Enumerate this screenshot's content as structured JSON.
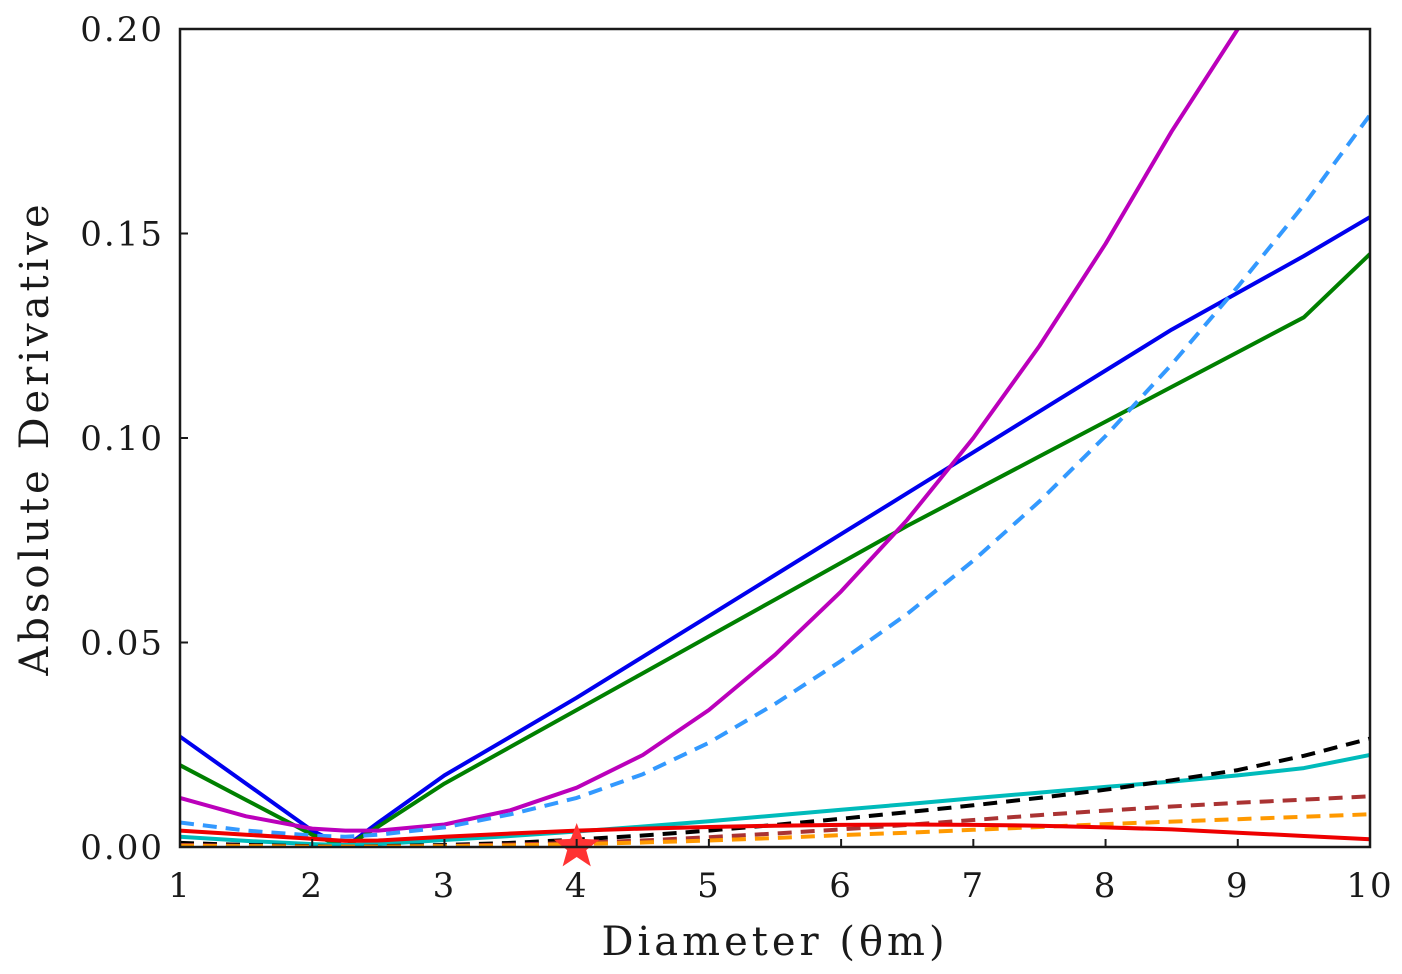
{
  "chart_data": {
    "type": "line",
    "title": "",
    "xlabel": "Diameter (θm)",
    "ylabel": "Absolute Derivative",
    "xlim": [
      1,
      10
    ],
    "ylim": [
      0,
      0.2
    ],
    "grid": false,
    "legend": "none",
    "x_ticks": [
      "1",
      "2",
      "3",
      "4",
      "5",
      "6",
      "7",
      "8",
      "9",
      "10"
    ],
    "y_ticks": [
      "0.00",
      "0.05",
      "0.10",
      "0.15",
      "0.20"
    ],
    "x": [
      1,
      1.5,
      2,
      2.25,
      2.5,
      3,
      3.5,
      4,
      4.5,
      5,
      5.5,
      6,
      6.5,
      7,
      7.5,
      8,
      8.5,
      9,
      9.5,
      10
    ],
    "series": [
      {
        "color": "#0000ee",
        "dash": "solid",
        "values": [
          0.027,
          0.0155,
          0.004,
          0.0,
          0.006,
          0.0175,
          0.027,
          0.0365,
          0.0465,
          0.0565,
          0.0665,
          0.0765,
          0.0865,
          0.0965,
          0.1065,
          0.1165,
          0.1265,
          0.1355,
          0.1445,
          0.154
        ]
      },
      {
        "color": "#008000",
        "dash": "solid",
        "values": [
          0.02,
          0.0115,
          0.003,
          0.0,
          0.005,
          0.0155,
          0.0245,
          0.0335,
          0.0425,
          0.0515,
          0.0605,
          0.0695,
          0.0785,
          0.087,
          0.0955,
          0.104,
          0.1125,
          0.121,
          0.1295,
          0.145
        ]
      },
      {
        "color": "#bb00bb",
        "dash": "solid",
        "values": [
          0.012,
          0.0075,
          0.0045,
          0.004,
          0.004,
          0.0055,
          0.009,
          0.0145,
          0.0225,
          0.0335,
          0.047,
          0.0625,
          0.08,
          0.1,
          0.1225,
          0.1475,
          0.175,
          0.2,
          null,
          null
        ]
      },
      {
        "color": "#3399ff",
        "dash": "dashed",
        "values": [
          0.006,
          0.004,
          0.0028,
          0.0025,
          0.003,
          0.0048,
          0.008,
          0.012,
          0.0178,
          0.0255,
          0.035,
          0.0455,
          0.057,
          0.07,
          0.0845,
          0.1005,
          0.118,
          0.137,
          0.157,
          0.179
        ]
      },
      {
        "color": "#00bbbb",
        "dash": "solid",
        "values": [
          0.0025,
          0.0015,
          0.0007,
          0.0005,
          0.0007,
          0.0017,
          0.0027,
          0.0038,
          0.005,
          0.0063,
          0.0077,
          0.0091,
          0.0105,
          0.0119,
          0.0133,
          0.0147,
          0.016,
          0.0175,
          0.0193,
          0.0225
        ]
      },
      {
        "color": "#000000",
        "dash": "dashed",
        "values": [
          0.001,
          0.0005,
          0.0002,
          0.0001,
          0.0002,
          0.0005,
          0.001,
          0.0018,
          0.0028,
          0.004,
          0.0054,
          0.0069,
          0.0085,
          0.0102,
          0.012,
          0.014,
          0.0163,
          0.0188,
          0.0223,
          0.0265
        ]
      },
      {
        "color": "#aa3333",
        "dash": "dashed",
        "values": [
          0.0005,
          0.0003,
          0.0001,
          0.0001,
          0.0001,
          0.0003,
          0.0006,
          0.001,
          0.0016,
          0.0024,
          0.0033,
          0.0043,
          0.0054,
          0.0066,
          0.0078,
          0.0089,
          0.0099,
          0.0108,
          0.0116,
          0.0124
        ]
      },
      {
        "color": "#ff9900",
        "dash": "dashed",
        "values": [
          0.0003,
          0.0002,
          0.0001,
          0.0001,
          0.0001,
          0.0002,
          0.0004,
          0.0007,
          0.0011,
          0.0016,
          0.0022,
          0.0029,
          0.0035,
          0.0042,
          0.0049,
          0.0056,
          0.0062,
          0.0068,
          0.0074,
          0.008
        ]
      },
      {
        "color": "#ee0000",
        "dash": "solid",
        "values": [
          0.004,
          0.003,
          0.002,
          0.0015,
          0.0016,
          0.0025,
          0.0033,
          0.004,
          0.0045,
          0.0049,
          0.0052,
          0.0054,
          0.0055,
          0.0054,
          0.0052,
          0.0048,
          0.0043,
          0.0035,
          0.0027,
          0.0019
        ]
      }
    ],
    "marker": {
      "shape": "star",
      "color": "#ff3333",
      "x": 4,
      "y": 0.0
    }
  }
}
